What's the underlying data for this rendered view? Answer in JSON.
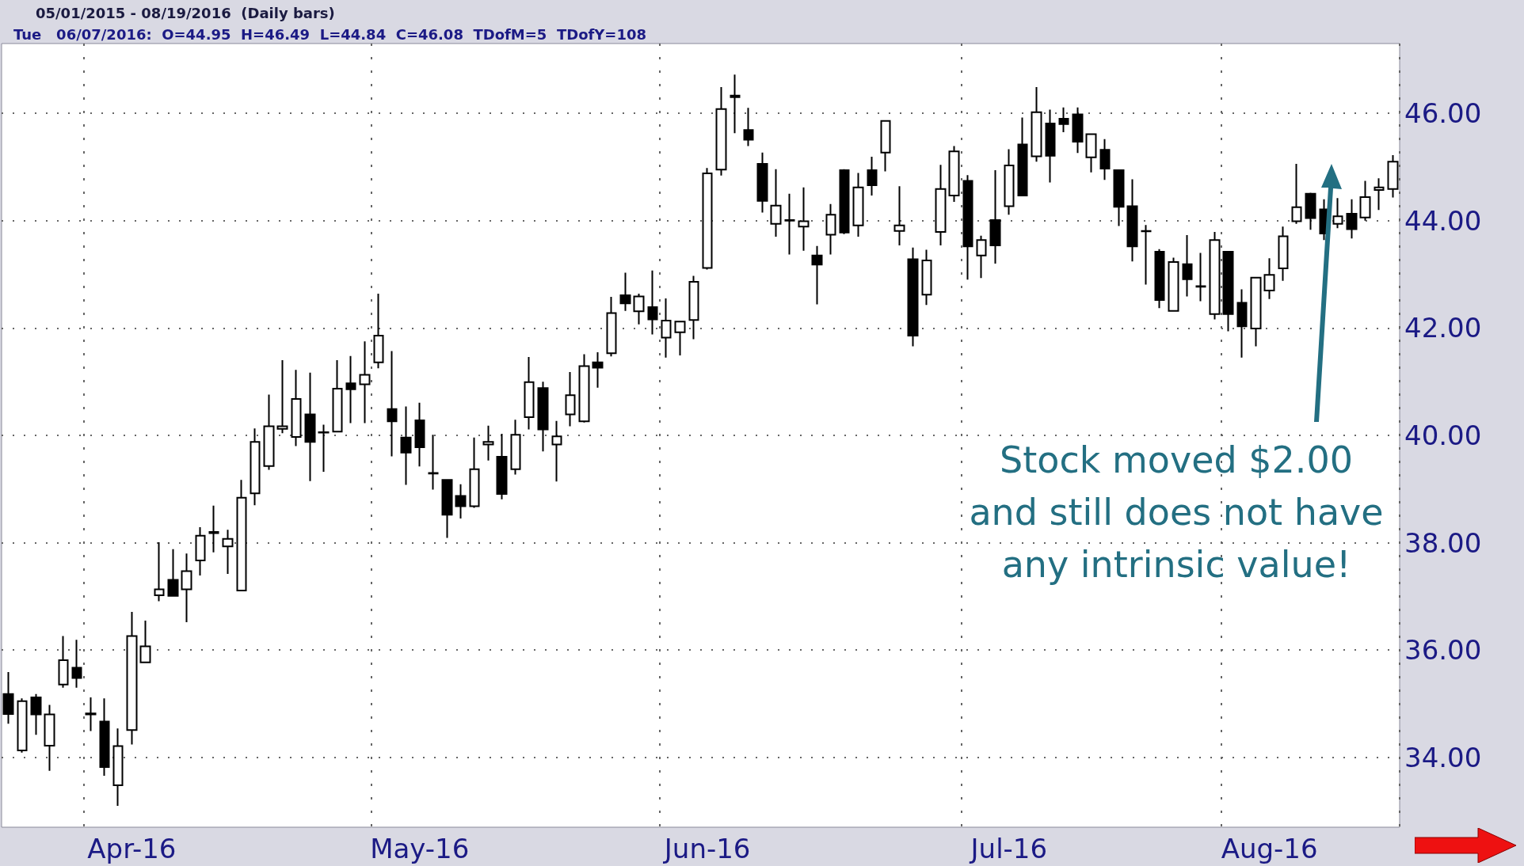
{
  "chart_data": {
    "type": "candlestick",
    "title": "05/01/2015 - 08/19/2016  (Daily bars)",
    "subtitle": "Tue   06/07/2016:  O=44.95  H=46.49  L=44.84  C=46.08  TDofM=5  TDofY=108",
    "categories": [
      null,
      null,
      null,
      null,
      null,
      null,
      null,
      null,
      null,
      "Apr-16",
      null,
      null,
      null,
      null,
      null,
      null,
      null,
      null,
      null,
      null,
      null,
      null,
      null,
      null,
      null,
      null,
      null,
      null,
      null,
      null,
      "May-16",
      null,
      null,
      null,
      null,
      null,
      null,
      null,
      null,
      null,
      null,
      null,
      null,
      null,
      null,
      null,
      null,
      null,
      null,
      null,
      null,
      "Jun-16",
      null,
      null,
      null,
      null,
      null,
      null,
      null,
      null,
      null,
      null,
      null,
      null,
      null,
      null,
      null,
      null,
      null,
      null,
      null,
      null,
      null,
      "Jul-16",
      null,
      null,
      null,
      null,
      null,
      null,
      null,
      null,
      null,
      null,
      null,
      null,
      null,
      null,
      null,
      null,
      null,
      null,
      "Aug-16",
      null,
      null,
      null,
      null,
      null,
      null,
      null,
      null,
      null
    ],
    "ohlc": [
      [
        35.18,
        35.59,
        34.63,
        34.81
      ],
      [
        34.13,
        35.1,
        34.09,
        35.05
      ],
      [
        35.12,
        35.18,
        34.42,
        34.8
      ],
      [
        34.22,
        34.98,
        33.75,
        34.8
      ],
      [
        35.36,
        36.26,
        35.3,
        35.81
      ],
      [
        35.67,
        36.19,
        35.3,
        35.48
      ],
      [
        34.82,
        35.12,
        34.49,
        34.8
      ],
      [
        34.67,
        35.1,
        33.66,
        33.82
      ],
      [
        33.48,
        34.54,
        33.1,
        34.21
      ],
      [
        34.51,
        36.71,
        34.24,
        36.26
      ],
      [
        35.77,
        36.55,
        35.77,
        36.07
      ],
      [
        37.02,
        38.01,
        36.91,
        37.13
      ],
      [
        37.31,
        37.88,
        37.01,
        37.01
      ],
      [
        37.13,
        37.8,
        36.52,
        37.47
      ],
      [
        37.67,
        38.29,
        37.39,
        38.13
      ],
      [
        38.2,
        38.69,
        37.82,
        38.18
      ],
      [
        37.93,
        38.24,
        37.42,
        38.07
      ],
      [
        37.11,
        39.17,
        37.11,
        38.84
      ],
      [
        38.92,
        40.13,
        38.7,
        39.88
      ],
      [
        39.43,
        40.76,
        39.36,
        40.17
      ],
      [
        40.12,
        41.4,
        40.04,
        40.17
      ],
      [
        39.97,
        41.22,
        39.8,
        40.68
      ],
      [
        40.39,
        41.17,
        39.15,
        39.88
      ],
      [
        40.06,
        40.2,
        39.32,
        40.05
      ],
      [
        40.07,
        41.4,
        40.07,
        40.87
      ],
      [
        40.97,
        41.48,
        40.23,
        40.86
      ],
      [
        40.95,
        41.75,
        40.23,
        41.13
      ],
      [
        41.36,
        42.64,
        41.25,
        41.86
      ],
      [
        40.49,
        41.57,
        39.61,
        40.26
      ],
      [
        39.96,
        40.54,
        39.08,
        39.68
      ],
      [
        40.28,
        40.61,
        39.42,
        39.78
      ],
      [
        39.3,
        40.01,
        38.99,
        39.29
      ],
      [
        39.17,
        39.17,
        38.09,
        38.52
      ],
      [
        38.87,
        39.09,
        38.45,
        38.68
      ],
      [
        38.68,
        39.96,
        38.65,
        39.37
      ],
      [
        39.83,
        40.18,
        39.53,
        39.88
      ],
      [
        39.6,
        40.03,
        38.81,
        38.91
      ],
      [
        39.37,
        40.29,
        39.27,
        40.01
      ],
      [
        40.34,
        41.46,
        40.11,
        40.99
      ],
      [
        40.88,
        41.0,
        39.7,
        40.11
      ],
      [
        39.83,
        40.27,
        39.14,
        39.98
      ],
      [
        40.39,
        41.18,
        40.17,
        40.75
      ],
      [
        40.26,
        41.51,
        40.24,
        41.29
      ],
      [
        41.36,
        41.55,
        40.89,
        41.26
      ],
      [
        41.53,
        42.58,
        41.47,
        42.28
      ],
      [
        42.61,
        43.03,
        42.32,
        42.46
      ],
      [
        42.31,
        42.64,
        42.07,
        42.59
      ],
      [
        42.39,
        43.07,
        41.88,
        42.16
      ],
      [
        41.82,
        42.55,
        41.45,
        42.14
      ],
      [
        41.92,
        42.12,
        41.49,
        42.12
      ],
      [
        42.15,
        42.97,
        41.79,
        42.86
      ],
      [
        43.12,
        44.98,
        43.09,
        44.88
      ],
      [
        44.95,
        46.49,
        44.84,
        46.08
      ],
      [
        46.33,
        46.72,
        45.63,
        46.3
      ],
      [
        45.69,
        46.1,
        45.39,
        45.51
      ],
      [
        45.06,
        45.27,
        44.15,
        44.37
      ],
      [
        43.94,
        44.96,
        43.7,
        44.28
      ],
      [
        44.01,
        44.5,
        43.37,
        44.0
      ],
      [
        43.89,
        44.62,
        43.44,
        43.99
      ],
      [
        43.35,
        43.53,
        42.44,
        43.18
      ],
      [
        43.74,
        44.31,
        43.37,
        44.11
      ],
      [
        44.94,
        44.96,
        43.75,
        43.78
      ],
      [
        43.91,
        44.89,
        43.7,
        44.62
      ],
      [
        44.94,
        45.19,
        44.47,
        44.66
      ],
      [
        45.27,
        45.86,
        44.92,
        45.86
      ],
      [
        43.81,
        44.64,
        43.54,
        43.91
      ],
      [
        43.28,
        43.5,
        41.66,
        41.86
      ],
      [
        42.62,
        43.46,
        42.43,
        43.26
      ],
      [
        43.79,
        45.04,
        43.54,
        44.59
      ],
      [
        44.47,
        45.39,
        44.35,
        45.29
      ],
      [
        44.74,
        44.85,
        42.9,
        43.52
      ],
      [
        43.35,
        43.72,
        42.93,
        43.64
      ],
      [
        44.01,
        44.94,
        43.2,
        43.54
      ],
      [
        44.27,
        45.33,
        44.11,
        45.03
      ],
      [
        45.42,
        45.92,
        44.47,
        44.47
      ],
      [
        45.2,
        46.49,
        45.1,
        46.02
      ],
      [
        45.81,
        46.07,
        44.71,
        45.21
      ],
      [
        45.9,
        46.11,
        45.65,
        45.8
      ],
      [
        45.98,
        46.11,
        45.26,
        45.47
      ],
      [
        45.18,
        45.61,
        44.9,
        45.61
      ],
      [
        45.32,
        45.52,
        44.76,
        44.97
      ],
      [
        44.94,
        44.94,
        43.9,
        44.26
      ],
      [
        44.27,
        44.77,
        43.24,
        43.52
      ],
      [
        43.81,
        43.92,
        42.81,
        43.8
      ],
      [
        43.42,
        43.47,
        42.37,
        42.52
      ],
      [
        42.32,
        43.31,
        42.32,
        43.23
      ],
      [
        43.19,
        43.73,
        42.59,
        42.91
      ],
      [
        42.78,
        43.4,
        42.5,
        42.77
      ],
      [
        42.26,
        43.79,
        42.16,
        43.64
      ],
      [
        43.42,
        43.42,
        41.94,
        42.26
      ],
      [
        42.47,
        42.72,
        41.45,
        42.03
      ],
      [
        41.99,
        42.94,
        41.66,
        42.94
      ],
      [
        42.7,
        43.3,
        42.54,
        42.99
      ],
      [
        43.11,
        43.89,
        42.88,
        43.71
      ],
      [
        43.99,
        45.06,
        43.94,
        44.25
      ],
      [
        44.5,
        44.52,
        43.83,
        44.05
      ],
      [
        44.21,
        44.4,
        43.64,
        43.76
      ],
      [
        43.94,
        44.42,
        43.86,
        44.08
      ],
      [
        44.13,
        44.4,
        43.67,
        43.84
      ],
      [
        44.06,
        44.74,
        44.0,
        44.44
      ],
      [
        44.57,
        44.79,
        44.2,
        44.62
      ],
      [
        44.59,
        45.22,
        44.43,
        45.1
      ]
    ],
    "ylim": [
      32.7,
      47.3
    ],
    "yticks": [
      {
        "value": 34,
        "label": "34.00"
      },
      {
        "value": 36,
        "label": "36.00"
      },
      {
        "value": 38,
        "label": "38.00"
      },
      {
        "value": 40,
        "label": "40.00"
      },
      {
        "value": 42,
        "label": "42.00"
      },
      {
        "value": 44,
        "label": "44.00"
      },
      {
        "value": 46,
        "label": "46.00"
      }
    ],
    "grid": true,
    "annotations": [
      "Stock moved $2.00\nand still does not have\nany intrinsic value!"
    ]
  }
}
